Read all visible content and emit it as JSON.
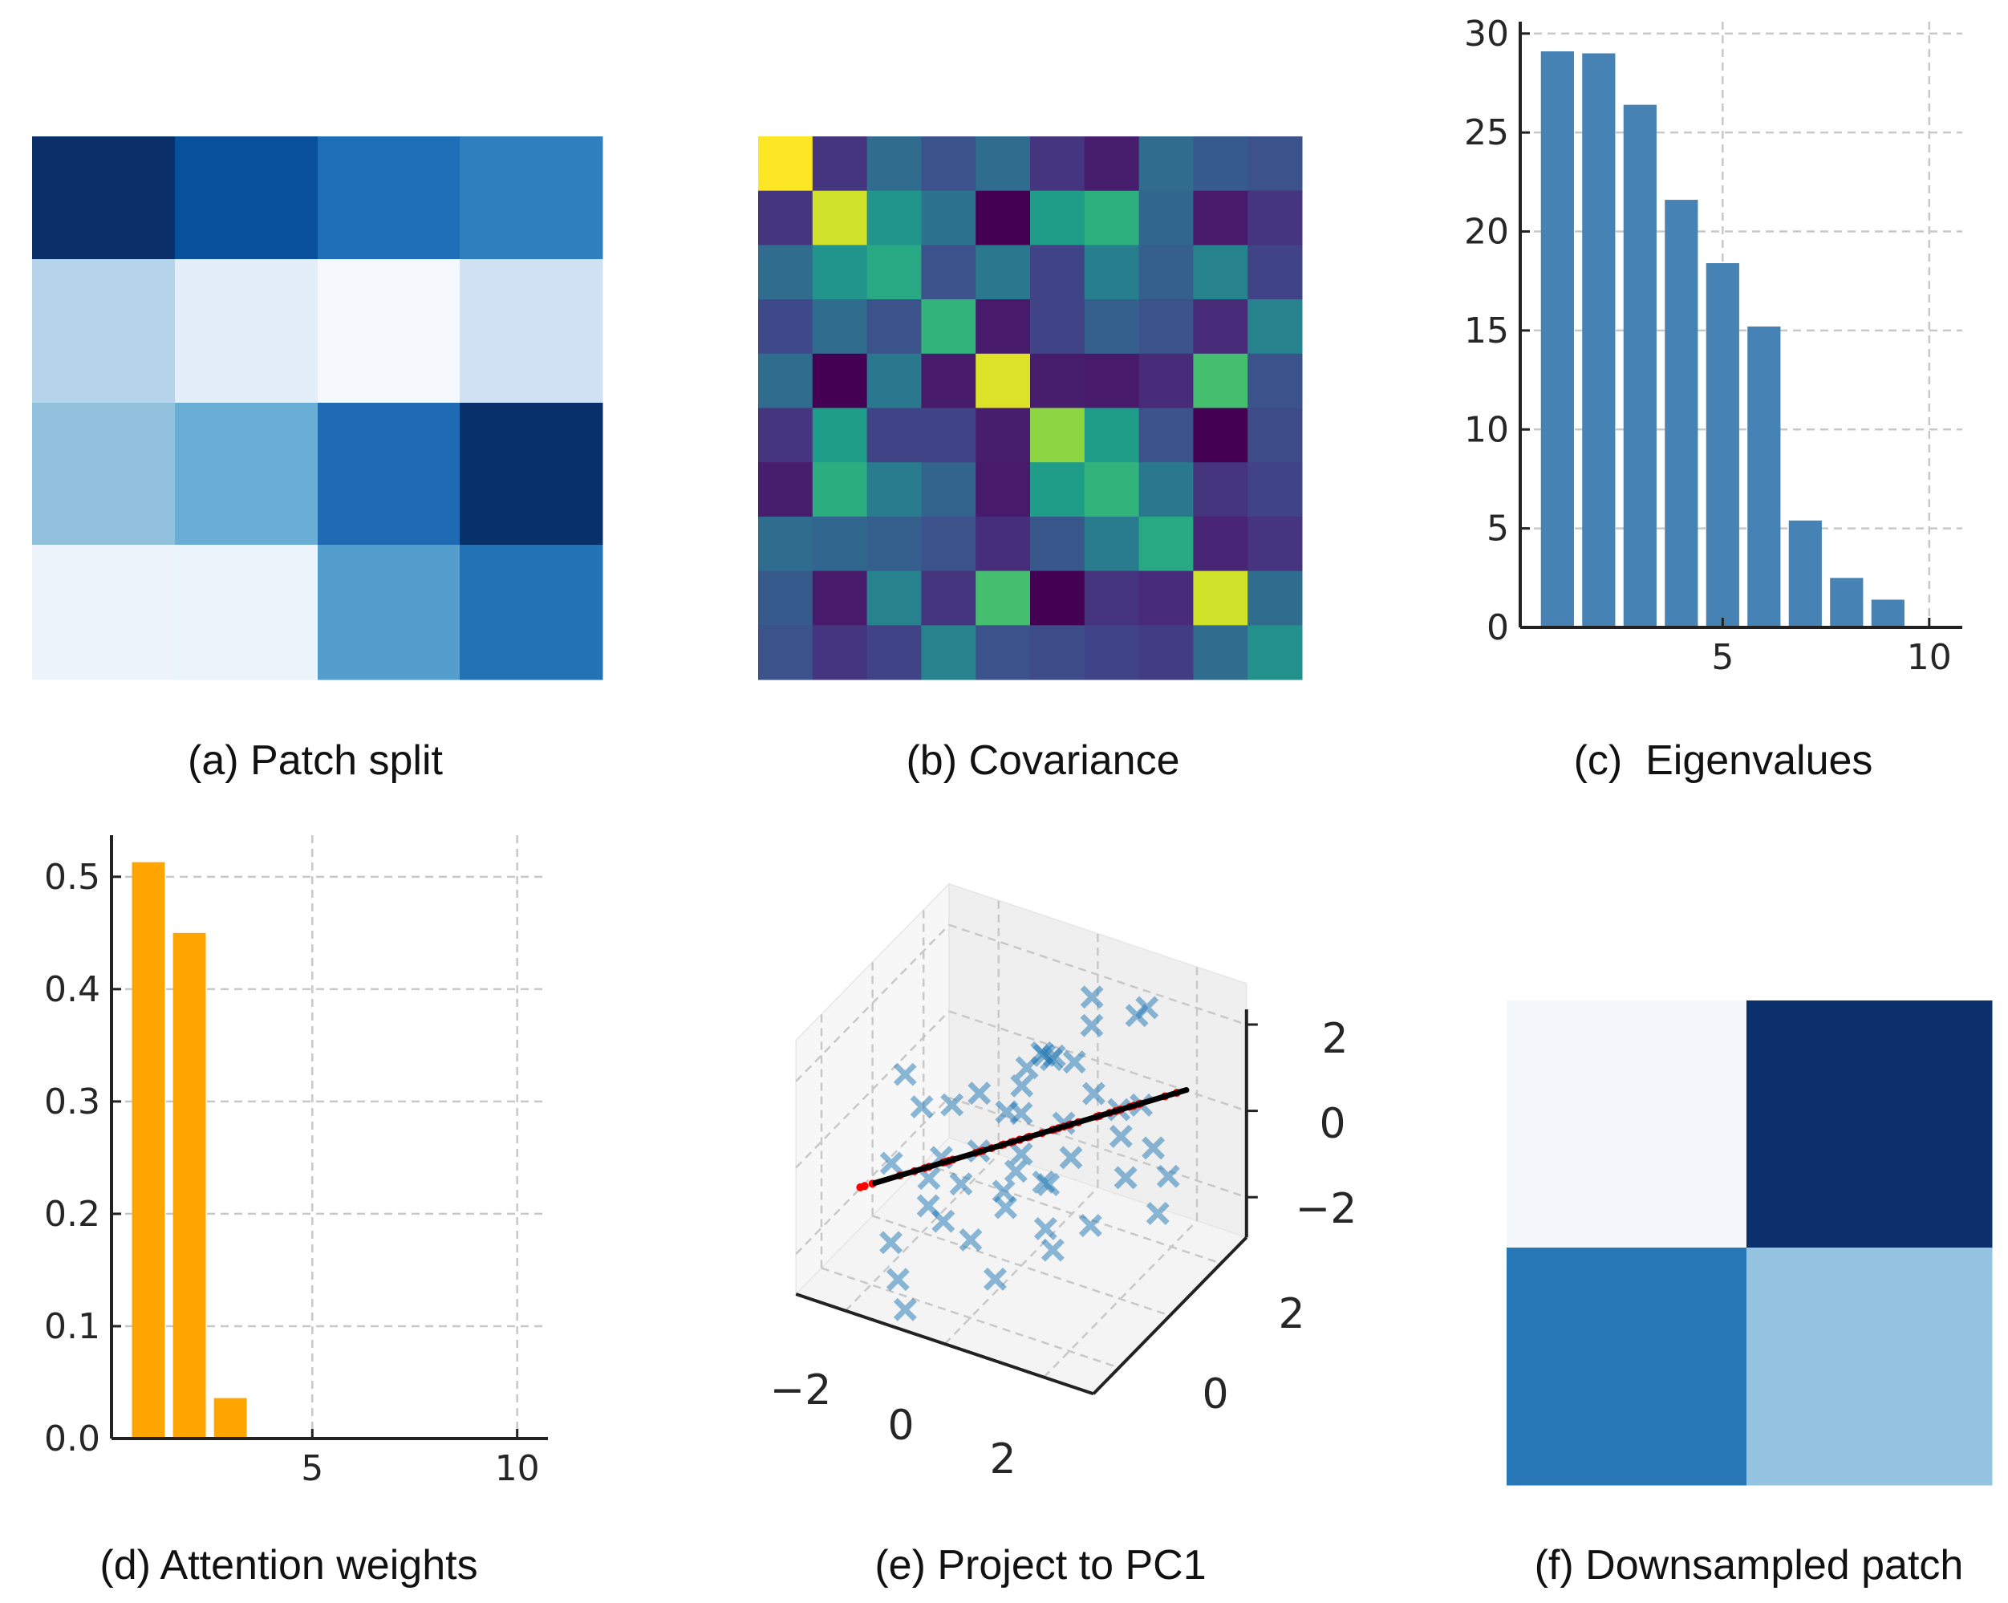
{
  "captions": {
    "a": "(a) Patch split",
    "b": "(b) Covariance",
    "c": "(c)  Eigenvalues",
    "d": "(d) Attention weights",
    "e": "(e) Project to PC1",
    "f": "(f) Downsampled patch"
  },
  "chart_data": [
    {
      "id": "a",
      "type": "heatmap",
      "title": "(a) Patch split",
      "colormap": "Blues",
      "colors": [
        [
          "#0b2f69",
          "#08509b",
          "#1f6eb8",
          "#2f7fbf"
        ],
        [
          "#b5d4e9",
          "#e3eef8",
          "#f5f9fe",
          "#cfe1f2"
        ],
        [
          "#92c1de",
          "#6aaed6",
          "#1e6bb3",
          "#08306b"
        ],
        [
          "#ecf3fb",
          "#ebf3fb",
          "#539ecd",
          "#2372b6"
        ]
      ]
    },
    {
      "id": "b",
      "type": "heatmap",
      "title": "(b) Covariance",
      "colormap": "viridis",
      "values": [
        [
          1.0,
          0.15,
          0.35,
          0.25,
          0.35,
          0.15,
          0.08,
          0.35,
          0.28,
          0.25
        ],
        [
          0.15,
          0.93,
          0.52,
          0.38,
          0.0,
          0.55,
          0.63,
          0.33,
          0.07,
          0.15
        ],
        [
          0.35,
          0.52,
          0.6,
          0.25,
          0.4,
          0.2,
          0.43,
          0.3,
          0.45,
          0.2
        ],
        [
          0.22,
          0.35,
          0.25,
          0.65,
          0.07,
          0.2,
          0.3,
          0.25,
          0.12,
          0.45
        ],
        [
          0.35,
          0.0,
          0.4,
          0.07,
          0.95,
          0.08,
          0.07,
          0.12,
          0.7,
          0.25
        ],
        [
          0.15,
          0.55,
          0.2,
          0.2,
          0.08,
          0.83,
          0.55,
          0.25,
          0.0,
          0.23
        ],
        [
          0.08,
          0.62,
          0.42,
          0.32,
          0.07,
          0.55,
          0.65,
          0.4,
          0.15,
          0.2
        ],
        [
          0.35,
          0.33,
          0.3,
          0.25,
          0.13,
          0.27,
          0.42,
          0.6,
          0.1,
          0.15
        ],
        [
          0.28,
          0.07,
          0.45,
          0.15,
          0.7,
          0.0,
          0.15,
          0.12,
          0.93,
          0.35
        ],
        [
          0.25,
          0.15,
          0.2,
          0.45,
          0.25,
          0.23,
          0.2,
          0.18,
          0.35,
          0.5
        ]
      ]
    },
    {
      "id": "c",
      "type": "bar",
      "title": "(c)  Eigenvalues",
      "color": "#4682b4",
      "x": [
        1,
        2,
        3,
        4,
        5,
        6,
        7,
        8,
        9
      ],
      "values": [
        29.1,
        29.0,
        26.4,
        21.6,
        18.4,
        15.2,
        5.4,
        2.5,
        1.4
      ],
      "xlim": [
        0.1,
        10.8
      ],
      "ylim": [
        0,
        30.6
      ],
      "xticks": [
        "5",
        "10"
      ],
      "xtick_values": [
        5,
        10
      ],
      "yticks": [
        "0",
        "5",
        "10",
        "15",
        "20",
        "25",
        "30"
      ],
      "ytick_values": [
        0,
        5,
        10,
        15,
        20,
        25,
        30
      ],
      "grid": true
    },
    {
      "id": "d",
      "type": "bar",
      "title": "(d) Attention weights",
      "color": "#ffa500",
      "x": [
        1,
        2,
        3
      ],
      "values": [
        0.513,
        0.45,
        0.036
      ],
      "xlim": [
        0.1,
        10.75
      ],
      "ylim": [
        0,
        0.537
      ],
      "xticks": [
        "5",
        "10"
      ],
      "xtick_values": [
        5,
        10
      ],
      "yticks": [
        "0.0",
        "0.1",
        "0.2",
        "0.3",
        "0.4",
        "0.5"
      ],
      "ytick_values": [
        0,
        0.1,
        0.2,
        0.3,
        0.4,
        0.5
      ],
      "grid": true
    },
    {
      "id": "e",
      "type": "scatter",
      "title": "(e) Project to PC1",
      "marker_color": "#1f77b4",
      "projection_color": "#ff0000",
      "line_color": "#000000",
      "xlim": [
        -3,
        3
      ],
      "ylim": [
        -3,
        3
      ],
      "zlim": [
        -2.93,
        2.35
      ],
      "xticks": [
        "−2",
        "0",
        "2"
      ],
      "yticks": [
        "0",
        "2"
      ],
      "zticks": [
        "2",
        "0",
        "−2"
      ],
      "pc1_direction": [
        1,
        1,
        0.3
      ],
      "points": [
        [
          -2.6,
          0.5,
          0.2
        ],
        [
          -1.8,
          -0.4,
          0.3
        ],
        [
          -1.5,
          0.2,
          0.1
        ],
        [
          -1.2,
          -0.8,
          -0.4
        ],
        [
          -1.0,
          0.3,
          0.5
        ],
        [
          -2.0,
          -1.2,
          -0.6
        ],
        [
          -0.6,
          -0.5,
          -0.2
        ],
        [
          -0.4,
          0.8,
          0.6
        ],
        [
          -0.2,
          1.2,
          1.2
        ],
        [
          0.0,
          0.9,
          1.4
        ],
        [
          0.1,
          1.1,
          1.3
        ],
        [
          0.3,
          0.6,
          1.6
        ],
        [
          0.5,
          1.8,
          2.4
        ],
        [
          0.6,
          1.6,
          1.9
        ],
        [
          1.2,
          2.2,
          2.0
        ],
        [
          1.3,
          2.4,
          2.1
        ],
        [
          -0.8,
          -1.5,
          -1.3
        ],
        [
          -0.3,
          -1.4,
          -1.6
        ],
        [
          0.2,
          -1.0,
          -0.9
        ],
        [
          0.4,
          -1.8,
          -2.0
        ],
        [
          -1.6,
          -2.0,
          -1.8
        ],
        [
          -1.2,
          -2.5,
          -2.2
        ],
        [
          -0.9,
          -2.8,
          -2.6
        ],
        [
          0.8,
          -0.6,
          -1.4
        ],
        [
          1.1,
          -0.9,
          -1.6
        ],
        [
          1.5,
          -0.2,
          -1.3
        ],
        [
          0.9,
          0.2,
          -0.2
        ],
        [
          0.6,
          0.5,
          0.3
        ],
        [
          1.6,
          0.8,
          0.2
        ],
        [
          1.9,
          0.4,
          -0.4
        ],
        [
          2.2,
          0.9,
          0.1
        ],
        [
          2.6,
          0.3,
          -0.9
        ],
        [
          2.4,
          1.1,
          -0.6
        ],
        [
          0.0,
          0.0,
          0.6
        ],
        [
          -0.5,
          0.4,
          0.2
        ],
        [
          0.3,
          1.5,
          1.0
        ],
        [
          -0.1,
          0.2,
          -0.5
        ],
        [
          0.7,
          -0.3,
          -0.6
        ],
        [
          -1.4,
          -0.9,
          -0.9
        ],
        [
          -0.7,
          -1.0,
          -0.7
        ],
        [
          1.0,
          0.9,
          0.9
        ],
        [
          1.3,
          1.3,
          0.4
        ],
        [
          -0.2,
          -0.3,
          -1.1
        ],
        [
          0.4,
          0.1,
          -0.9
        ],
        [
          -1.0,
          -1.7,
          -0.9
        ],
        [
          0.2,
          -0.6,
          -0.3
        ],
        [
          1.7,
          1.4,
          0.6
        ],
        [
          -0.4,
          1.0,
          0.9
        ]
      ]
    },
    {
      "id": "f",
      "type": "heatmap",
      "title": "(f) Downsampled patch",
      "colormap": "Blues",
      "colors": [
        [
          "#f4f8fd",
          "#0b306b"
        ],
        [
          "#2878b8",
          "#94c4df"
        ]
      ]
    }
  ]
}
